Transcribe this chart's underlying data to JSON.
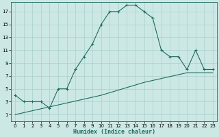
{
  "xlabel": "Humidex (Indice chaleur)",
  "ylabel": "",
  "bg_color": "#cce8e4",
  "grid_color": "#aacfcc",
  "line_color": "#1e6b5e",
  "xlim": [
    -0.5,
    23.5
  ],
  "ylim": [
    0,
    18.5
  ],
  "xticks": [
    0,
    1,
    2,
    3,
    4,
    5,
    6,
    7,
    8,
    9,
    10,
    11,
    12,
    13,
    14,
    15,
    16,
    17,
    18,
    19,
    20,
    21,
    22,
    23
  ],
  "yticks": [
    1,
    3,
    5,
    7,
    9,
    11,
    13,
    15,
    17
  ],
  "curve1_x": [
    0,
    1,
    2,
    3,
    4,
    5,
    6,
    7,
    8,
    9,
    10,
    11,
    12,
    13,
    14,
    15,
    16,
    17,
    18,
    19,
    20,
    21,
    22,
    23
  ],
  "curve1_y": [
    4,
    3,
    3,
    3,
    2,
    5,
    5,
    8,
    10,
    12,
    15,
    17,
    17,
    18,
    18,
    17,
    16,
    11,
    10,
    10,
    8,
    11,
    8,
    8
  ],
  "curve2_x": [
    0,
    5,
    10,
    15,
    20,
    23
  ],
  "curve2_y": [
    1,
    2.5,
    4,
    6,
    7.5,
    7.5
  ]
}
